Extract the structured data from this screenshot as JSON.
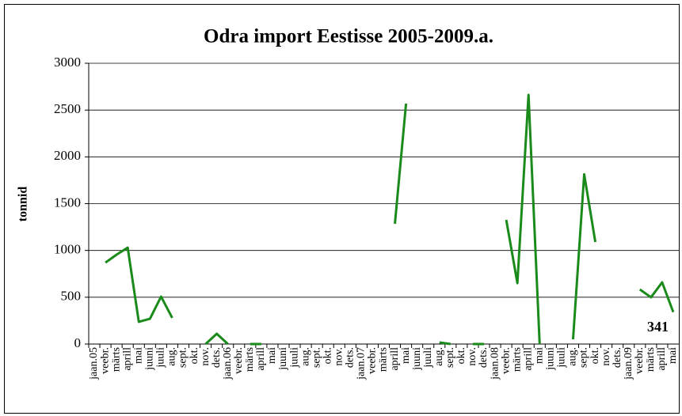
{
  "chart_data": {
    "type": "line",
    "title": "Odra import Eestisse 2005-2009.a.",
    "y_label": "tonnid",
    "categories": [
      "jaan.05",
      "veebr.",
      "märts",
      "aprill",
      "mai",
      "juuni",
      "juuli",
      "aug.",
      "sept.",
      "okt.",
      "nov.",
      "dets.",
      "jaan.06",
      "veebr.",
      "märts",
      "aprill",
      "mai",
      "juuni",
      "juuli",
      "aug.",
      "sept.",
      "okt.",
      "nov.",
      "dets.",
      "jaan.07",
      "veebr.",
      "märts",
      "aprill",
      "mai",
      "juuni",
      "juuli",
      "aug.",
      "sept.",
      "okt.",
      "nov.",
      "dets.",
      "jaan.08",
      "veebr.",
      "märts",
      "aprill",
      "mai",
      "juuni",
      "juuli",
      "aug.",
      "sept.",
      "okt.",
      "nov.",
      "dets.",
      "jaan.09",
      "veebr.",
      "märts",
      "aprill",
      "mai"
    ],
    "series": [
      {
        "name": "Odra import",
        "color": "#1a8a1a",
        "values": [
          null,
          870,
          955,
          1030,
          237,
          270,
          507,
          279,
          null,
          null,
          0,
          110,
          0,
          null,
          0,
          0,
          null,
          null,
          null,
          null,
          null,
          null,
          null,
          null,
          null,
          null,
          null,
          1285,
          2569,
          null,
          null,
          17,
          0,
          null,
          0,
          0,
          null,
          1327,
          651,
          2662,
          0,
          null,
          null,
          50,
          1814,
          1090,
          null,
          null,
          null,
          583,
          499,
          659,
          341
        ]
      }
    ],
    "ylim": [
      0,
      3000
    ],
    "yticks": [
      0,
      500,
      1000,
      1500,
      2000,
      2500,
      3000
    ],
    "grid": true
  }
}
